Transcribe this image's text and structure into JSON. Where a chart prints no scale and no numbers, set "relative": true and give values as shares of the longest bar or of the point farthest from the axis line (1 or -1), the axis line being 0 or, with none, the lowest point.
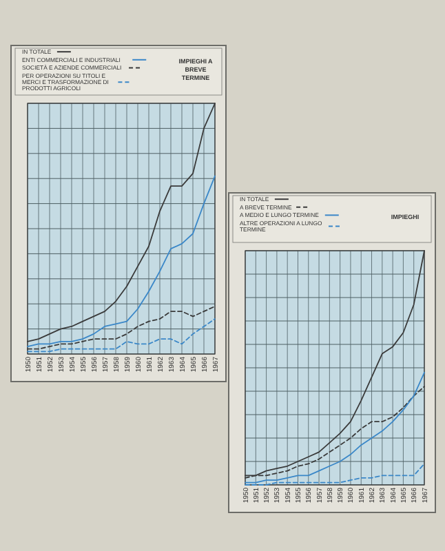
{
  "chart_data": [
    {
      "type": "line",
      "title": "IMPIEGHI A BREVE TERMINE",
      "relative": true,
      "grid": true,
      "legend": "top left",
      "categories": [
        "1950",
        "1951",
        "1952",
        "1953",
        "1954",
        "1955",
        "1956",
        "1957",
        "1958",
        "1959",
        "1960",
        "1961",
        "1962",
        "1963",
        "1964",
        "1965",
        "1966",
        "1967"
      ],
      "series": [
        {
          "name": "IN TOTALE",
          "color": "#3a3a3a",
          "line_style": "solid",
          "values": [
            0.05,
            0.06,
            0.08,
            0.1,
            0.11,
            0.13,
            0.15,
            0.17,
            0.21,
            0.27,
            0.35,
            0.43,
            0.57,
            0.67,
            0.67,
            0.72,
            0.9,
            1
          ]
        },
        {
          "name": "ENTI COMMERCIALI E INDUSTRIALI",
          "color": "#3a87c8",
          "line_style": "solid",
          "values": [
            0.03,
            0.04,
            0.04,
            0.05,
            0.05,
            0.06,
            0.08,
            0.11,
            0.12,
            0.13,
            0.18,
            0.25,
            0.33,
            0.42,
            0.44,
            0.48,
            0.6,
            0.71
          ]
        },
        {
          "name": "SOCIETÀ E AZIENDE COMMERCIALI",
          "color": "#3a3a3a",
          "line_style": "dashed",
          "values": [
            0.02,
            0.02,
            0.03,
            0.04,
            0.04,
            0.05,
            0.06,
            0.06,
            0.06,
            0.08,
            0.11,
            0.13,
            0.14,
            0.17,
            0.17,
            0.15,
            0.17,
            0.19
          ]
        },
        {
          "name": "PER OPERAZIONI SU TITOLI E MERCI E TRASFORMAZIONE DI PRODOTTI AGRICOLI",
          "color": "#3a87c8",
          "line_style": "dashed",
          "values": [
            0.01,
            0.01,
            0.01,
            0.02,
            0.02,
            0.02,
            0.02,
            0.02,
            0.02,
            0.05,
            0.04,
            0.04,
            0.06,
            0.06,
            0.04,
            0.08,
            0.11,
            0.14
          ]
        }
      ]
    },
    {
      "type": "line",
      "title": "IMPIEGHI",
      "relative": true,
      "grid": true,
      "legend": "top left",
      "categories": [
        "1950",
        "1951",
        "1952",
        "1953",
        "1954",
        "1955",
        "1956",
        "1957",
        "1958",
        "1959",
        "1960",
        "1961",
        "1962",
        "1963",
        "1964",
        "1965",
        "1966",
        "1967"
      ],
      "series": [
        {
          "name": "IN TOTALE",
          "color": "#3a3a3a",
          "line_style": "solid",
          "values": [
            0.04,
            0.04,
            0.06,
            0.07,
            0.08,
            0.1,
            0.12,
            0.14,
            0.18,
            0.22,
            0.27,
            0.36,
            0.46,
            0.56,
            0.59,
            0.65,
            0.77,
            1
          ]
        },
        {
          "name": "A BREVE TERMINE",
          "color": "#3a3a3a",
          "line_style": "dashed",
          "values": [
            0.03,
            0.04,
            0.04,
            0.05,
            0.06,
            0.08,
            0.09,
            0.11,
            0.14,
            0.17,
            0.2,
            0.24,
            0.27,
            0.27,
            0.29,
            0.33,
            0.38,
            0.42
          ]
        },
        {
          "name": "A MEDIO E LUNGO TERMINE",
          "color": "#3a87c8",
          "line_style": "solid",
          "values": [
            0.01,
            0.01,
            0.02,
            0.02,
            0.03,
            0.04,
            0.04,
            0.06,
            0.08,
            0.1,
            0.13,
            0.17,
            0.2,
            0.23,
            0.27,
            0.32,
            0.38,
            0.48
          ]
        },
        {
          "name": "ALTRE OPERAZIONI A LUNGO TERMINE",
          "color": "#3a87c8",
          "line_style": "dashed",
          "values": [
            0,
            0,
            0,
            0.01,
            0.01,
            0.01,
            0.01,
            0.01,
            0.01,
            0.01,
            0.02,
            0.03,
            0.03,
            0.04,
            0.04,
            0.04,
            0.04,
            0.09
          ]
        }
      ]
    }
  ]
}
